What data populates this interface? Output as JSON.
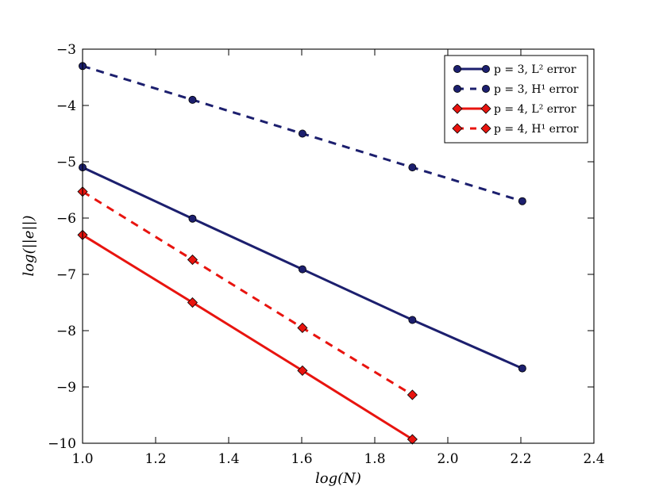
{
  "chart_data": {
    "type": "line",
    "title": "",
    "xlabel": "log(N)",
    "ylabel": "log(||e||)",
    "xlim": [
      1.0,
      2.4
    ],
    "ylim": [
      -10,
      -3
    ],
    "xticks": [
      1.0,
      1.2,
      1.4,
      1.6,
      1.8,
      2.0,
      2.2,
      2.4
    ],
    "yticks": [
      -3,
      -4,
      -5,
      -6,
      -7,
      -8,
      -9,
      -10
    ],
    "xtick_labels": [
      "1.0",
      "1.2",
      "1.4",
      "1.6",
      "1.8",
      "2.0",
      "2.2",
      "2.4"
    ],
    "ytick_labels": [
      "−3",
      "−4",
      "−5",
      "−6",
      "−7",
      "−8",
      "−9",
      "−10"
    ],
    "grid": false,
    "legend_position": "top-right",
    "series": [
      {
        "name": "p = 3, L2 error",
        "legend_label": "p = 3, L² error",
        "color": "#1c1f6e",
        "linestyle": "solid",
        "marker": "circle",
        "x": [
          1.0,
          1.301,
          1.602,
          1.903,
          2.204
        ],
        "y": [
          -5.1,
          -6.01,
          -6.91,
          -7.81,
          -8.67
        ]
      },
      {
        "name": "p = 3, H1 error",
        "legend_label": "p = 3, H¹ error",
        "color": "#1c1f6e",
        "linestyle": "dashed",
        "marker": "circle",
        "x": [
          1.0,
          1.301,
          1.602,
          1.903,
          2.204
        ],
        "y": [
          -3.3,
          -3.9,
          -4.5,
          -5.1,
          -5.7
        ]
      },
      {
        "name": "p = 4, L2 error",
        "legend_label": "p = 4, L² error",
        "color": "#e8140f",
        "linestyle": "solid",
        "marker": "diamond",
        "x": [
          1.0,
          1.301,
          1.602,
          1.903
        ],
        "y": [
          -6.3,
          -7.5,
          -8.71,
          -9.93
        ]
      },
      {
        "name": "p = 4, H1 error",
        "legend_label": "p = 4, H¹ error",
        "color": "#e8140f",
        "linestyle": "dashed",
        "marker": "diamond",
        "x": [
          1.0,
          1.301,
          1.602,
          1.903
        ],
        "y": [
          -5.53,
          -6.74,
          -7.95,
          -9.14
        ]
      }
    ]
  }
}
